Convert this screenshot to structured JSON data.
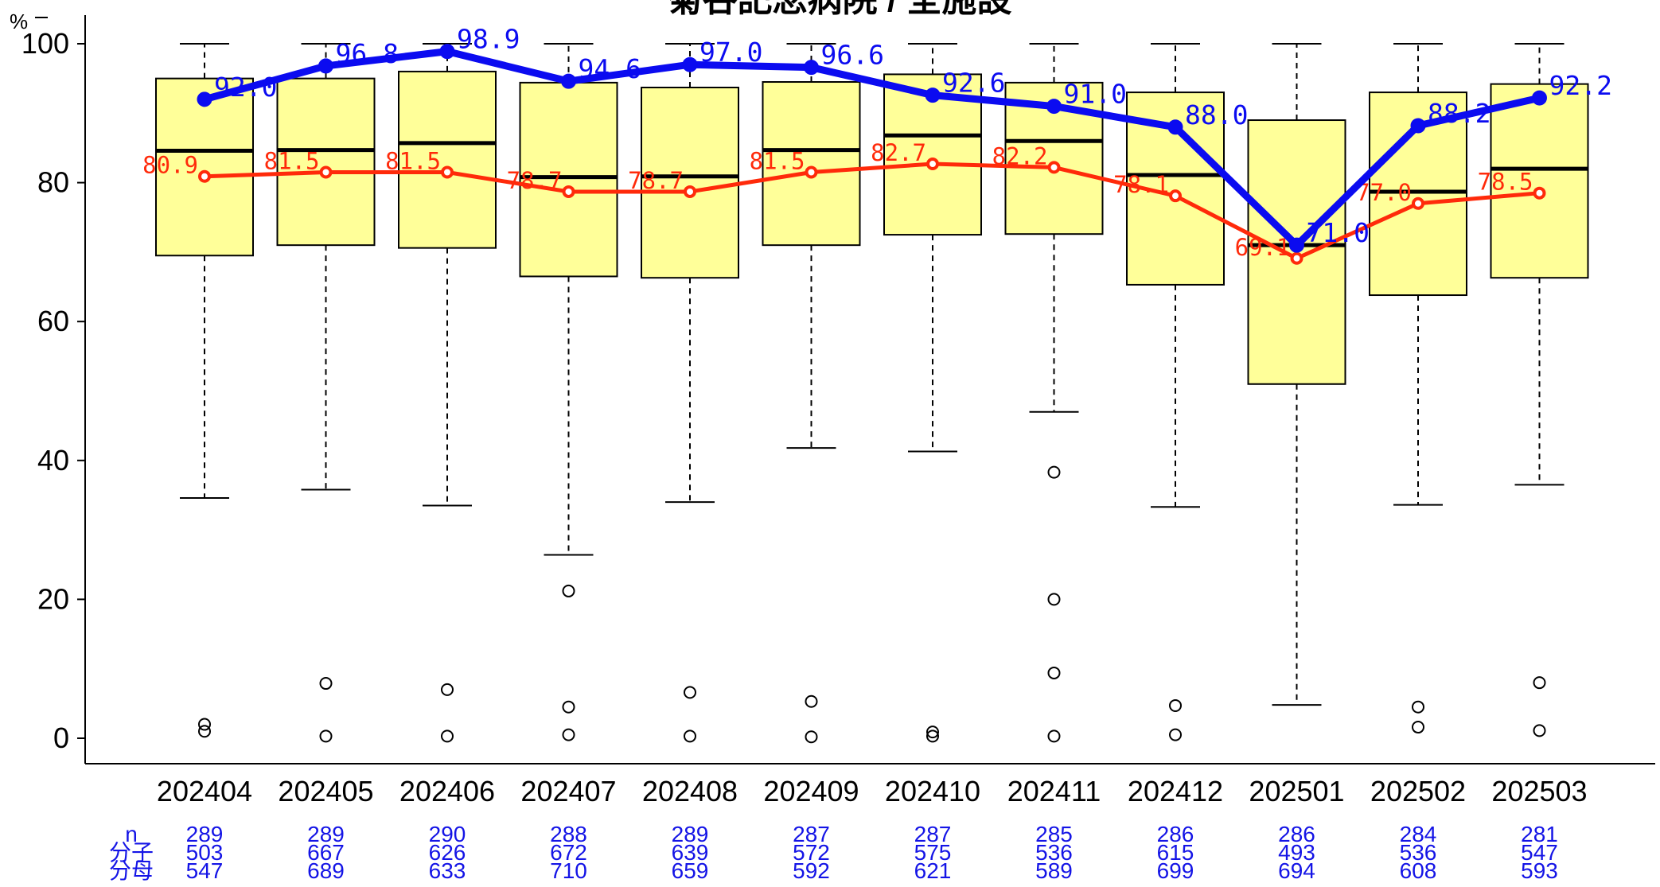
{
  "chart_data": {
    "type": "box",
    "title": "菊谷記念病院 / 全施設",
    "ylabel": "%",
    "ylim": [
      0,
      100
    ],
    "yticks": [
      0,
      20,
      40,
      60,
      80,
      100
    ],
    "categories": [
      "202404",
      "202405",
      "202406",
      "202407",
      "202408",
      "202409",
      "202410",
      "202411",
      "202412",
      "202501",
      "202502",
      "202503"
    ],
    "boxes": [
      {
        "whisker_low": 34.6,
        "q1": 69.5,
        "median": 84.6,
        "q3": 95.0,
        "whisker_high": 100,
        "outliers": [
          1.0,
          2.0
        ]
      },
      {
        "whisker_low": 35.8,
        "q1": 71.0,
        "median": 84.7,
        "q3": 95.0,
        "whisker_high": 100,
        "outliers": [
          0.3,
          7.9
        ]
      },
      {
        "whisker_low": 33.5,
        "q1": 70.6,
        "median": 85.7,
        "q3": 96.0,
        "whisker_high": 100,
        "outliers": [
          0.3,
          7.0
        ]
      },
      {
        "whisker_low": 26.4,
        "q1": 66.5,
        "median": 80.8,
        "q3": 94.4,
        "whisker_high": 100,
        "outliers": [
          0.5,
          4.5,
          21.2
        ]
      },
      {
        "whisker_low": 34.0,
        "q1": 66.3,
        "median": 80.9,
        "q3": 93.7,
        "whisker_high": 100,
        "outliers": [
          0.3,
          6.6
        ]
      },
      {
        "whisker_low": 41.8,
        "q1": 71.0,
        "median": 84.7,
        "q3": 94.5,
        "whisker_high": 100,
        "outliers": [
          0.2,
          5.3
        ]
      },
      {
        "whisker_low": 41.3,
        "q1": 72.5,
        "median": 86.8,
        "q3": 95.6,
        "whisker_high": 100,
        "outliers": [
          0.3,
          0.9
        ]
      },
      {
        "whisker_low": 47.0,
        "q1": 72.6,
        "median": 86.0,
        "q3": 94.4,
        "whisker_high": 100,
        "outliers": [
          0.3,
          9.4,
          20.0,
          38.3
        ]
      },
      {
        "whisker_low": 33.3,
        "q1": 65.3,
        "median": 81.1,
        "q3": 93.0,
        "whisker_high": 100,
        "outliers": [
          0.5,
          4.7
        ]
      },
      {
        "whisker_low": 4.8,
        "q1": 51.0,
        "median": 71.0,
        "q3": 89.0,
        "whisker_high": 100,
        "outliers": []
      },
      {
        "whisker_low": 33.6,
        "q1": 63.8,
        "median": 78.7,
        "q3": 93.0,
        "whisker_high": 100,
        "outliers": [
          1.6,
          4.5
        ]
      },
      {
        "whisker_low": 36.5,
        "q1": 66.3,
        "median": 82.0,
        "q3": 94.2,
        "whisker_high": 100,
        "outliers": [
          1.1,
          8.0
        ]
      }
    ],
    "series": [
      {
        "values": [
          92.0,
          96.8,
          98.9,
          94.6,
          97.0,
          96.6,
          92.6,
          91.0,
          88.0,
          71.0,
          88.2,
          92.2
        ],
        "labels": [
          "92.0",
          "96.8",
          "98.9",
          "94.6",
          "97.0",
          "96.6",
          "92.6",
          "91.0",
          "88.0",
          "71.0",
          "88.2",
          "92.2"
        ],
        "color": "#0b0bf0"
      },
      {
        "values": [
          80.9,
          81.5,
          81.5,
          78.7,
          78.7,
          81.5,
          82.7,
          82.2,
          78.1,
          69.1,
          77.0,
          78.5
        ],
        "labels": [
          "80.9",
          "81.5",
          "81.5",
          "78.7",
          "78.7",
          "81.5",
          "82.7",
          "82.2",
          "78.1",
          "69.1",
          "77.0",
          "78.5"
        ],
        "color": "#ff2a0a"
      }
    ],
    "table": {
      "row_labels": [
        "n",
        "分子",
        "分母"
      ],
      "rows": [
        [
          "289",
          "289",
          "290",
          "288",
          "289",
          "287",
          "287",
          "285",
          "286",
          "286",
          "284",
          "281"
        ],
        [
          "503",
          "667",
          "626",
          "672",
          "639",
          "572",
          "575",
          "536",
          "615",
          "493",
          "536",
          "547"
        ],
        [
          "547",
          "689",
          "633",
          "710",
          "659",
          "592",
          "621",
          "589",
          "699",
          "694",
          "608",
          "593"
        ]
      ]
    },
    "colors": {
      "box_fill": "#ffff99",
      "median": "#000000",
      "table_text": "#1414e6"
    },
    "grid": false
  }
}
